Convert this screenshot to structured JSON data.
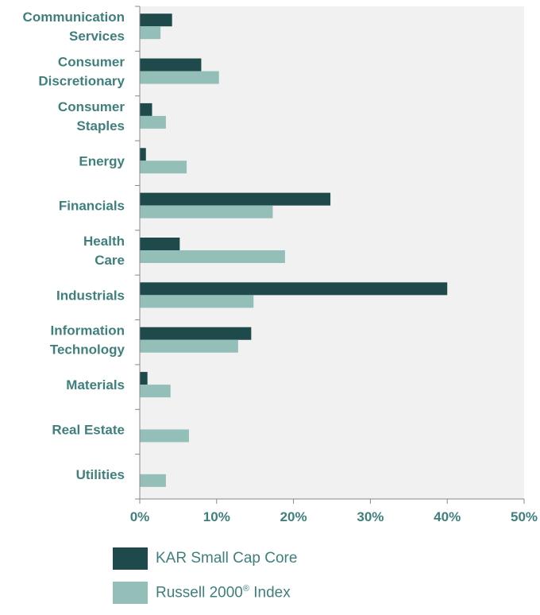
{
  "chart_data": {
    "type": "bar",
    "orientation": "horizontal",
    "categories": [
      [
        "Communication",
        "Services"
      ],
      [
        "Consumer",
        "Discretionary"
      ],
      [
        "Consumer",
        "Staples"
      ],
      [
        "Energy"
      ],
      [
        "Financials"
      ],
      [
        "Health",
        "Care"
      ],
      [
        "Industrials"
      ],
      [
        "Information",
        "Technology"
      ],
      [
        "Materials"
      ],
      [
        "Real Estate"
      ],
      [
        "Utilities"
      ]
    ],
    "series": [
      {
        "name": "KAR Small Cap Core",
        "color": "#1f4a4c",
        "values": [
          4.2,
          8.0,
          1.6,
          0.8,
          24.8,
          5.2,
          40.0,
          14.5,
          1.0,
          0,
          0
        ]
      },
      {
        "name": "Russell 2000® Index",
        "color": "#94bfb8",
        "values": [
          2.7,
          10.3,
          3.4,
          6.1,
          17.3,
          18.9,
          14.8,
          12.8,
          4.0,
          6.4,
          3.4
        ]
      }
    ],
    "xlim": [
      0,
      50
    ],
    "xticks": [
      "0%",
      "10%",
      "20%",
      "30%",
      "40%",
      "50%"
    ],
    "grid": false,
    "plot_background": "#f1f1f1",
    "legend_position": "bottom"
  },
  "legend": {
    "series1_label": "KAR Small Cap Core",
    "series2_label_main": "Russell 2000",
    "series2_label_sup": "®",
    "series2_label_tail": " Index"
  }
}
